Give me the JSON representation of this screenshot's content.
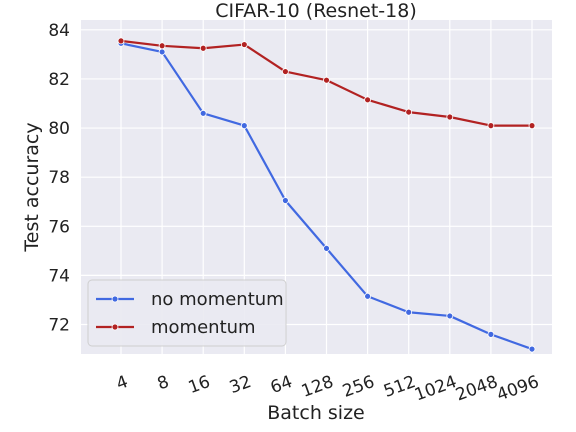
{
  "chart_data": {
    "type": "line",
    "title": "CIFAR-10 (Resnet-18)",
    "xlabel": "Batch size",
    "ylabel": "Test accuracy",
    "categories": [
      "4",
      "8",
      "16",
      "32",
      "64",
      "128",
      "256",
      "512",
      "1024",
      "2048",
      "4096"
    ],
    "ylim": [
      70.8,
      84.4
    ],
    "yticks": [
      72,
      74,
      76,
      78,
      80,
      82,
      84
    ],
    "grid": true,
    "legend_position": "lower-left",
    "series": [
      {
        "name": "no momentum",
        "color": "#4169e1",
        "values": [
          83.45,
          83.1,
          80.6,
          80.1,
          77.05,
          75.1,
          73.15,
          72.5,
          72.35,
          71.6,
          71.0
        ]
      },
      {
        "name": "momentum",
        "color": "#b22222",
        "values": [
          83.55,
          83.35,
          83.25,
          83.4,
          82.3,
          81.95,
          81.15,
          80.65,
          80.45,
          80.1,
          80.1
        ]
      }
    ]
  }
}
